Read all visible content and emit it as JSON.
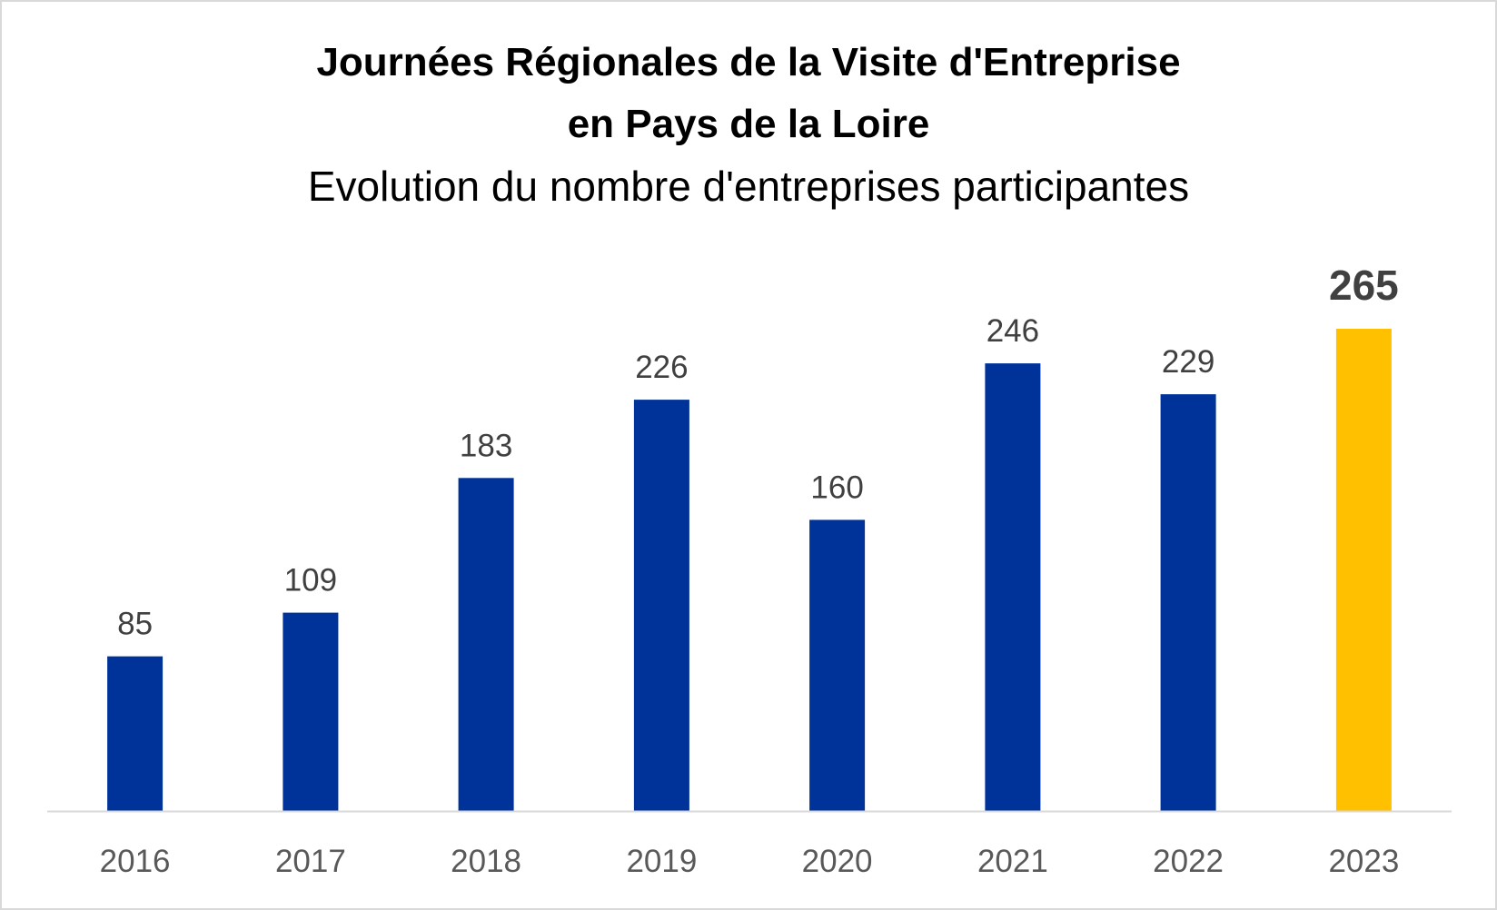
{
  "chart_data": {
    "type": "bar",
    "title": "Journées Régionales de la Visite d'Entreprise",
    "title_line2": "en Pays de la Loire",
    "subtitle": "Evolution du nombre d'entreprises participantes",
    "categories": [
      "2016",
      "2017",
      "2018",
      "2019",
      "2020",
      "2021",
      "2022",
      "2023"
    ],
    "values": [
      85,
      109,
      183,
      226,
      160,
      246,
      229,
      265
    ],
    "data_labels": [
      "85",
      "109",
      "183",
      "226",
      "160",
      "246",
      "229",
      "265"
    ],
    "highlight_index": 7,
    "ylim": [
      0,
      265
    ],
    "grid": false,
    "legend": "none",
    "colors": {
      "bar": "#003399",
      "highlight": "#FFC000",
      "axis": "#d9d9d9",
      "label": "#404040",
      "tick": "#595959"
    }
  }
}
